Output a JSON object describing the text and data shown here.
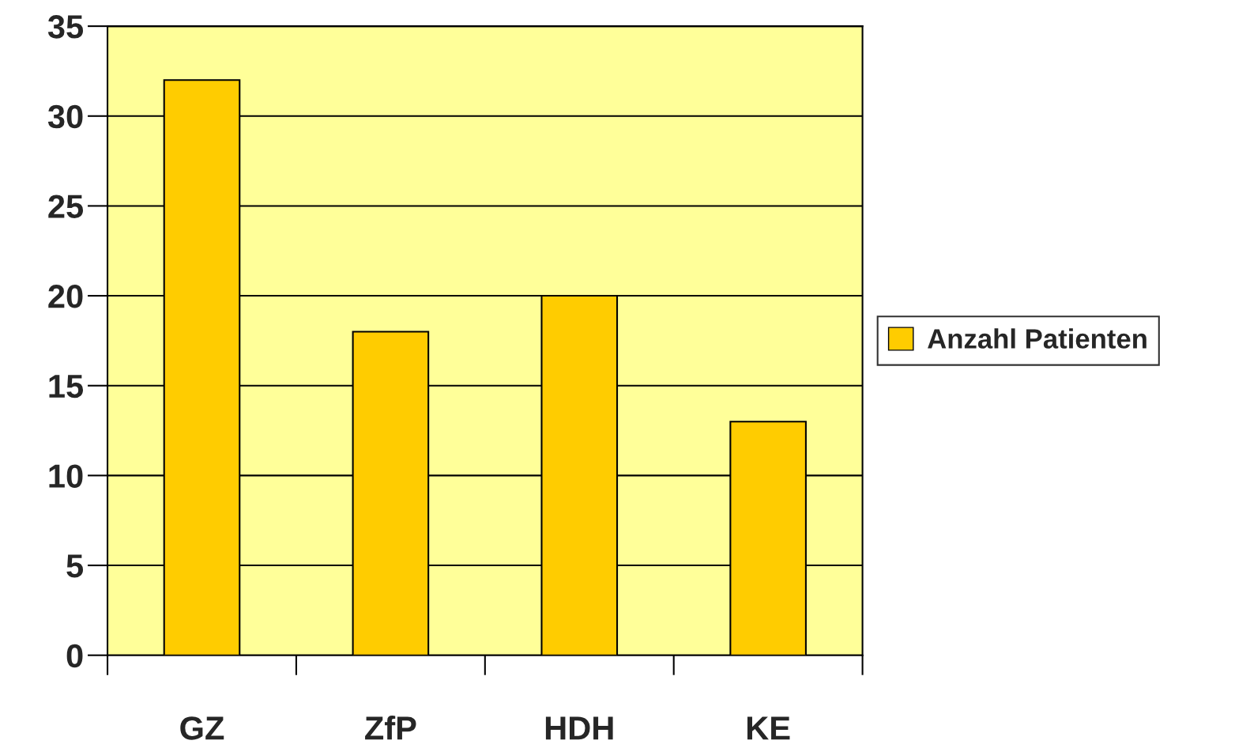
{
  "chart_data": {
    "type": "bar",
    "categories": [
      "GZ",
      "ZfP",
      "HDH",
      "KE"
    ],
    "series": [
      {
        "name": "Anzahl Patienten",
        "color": "#ffcc00",
        "values": [
          32,
          18,
          20,
          13
        ]
      }
    ],
    "ylim": [
      0,
      35
    ],
    "yticks": [
      0,
      5,
      10,
      15,
      20,
      25,
      30,
      35
    ],
    "grid": "y",
    "legend": "right"
  }
}
